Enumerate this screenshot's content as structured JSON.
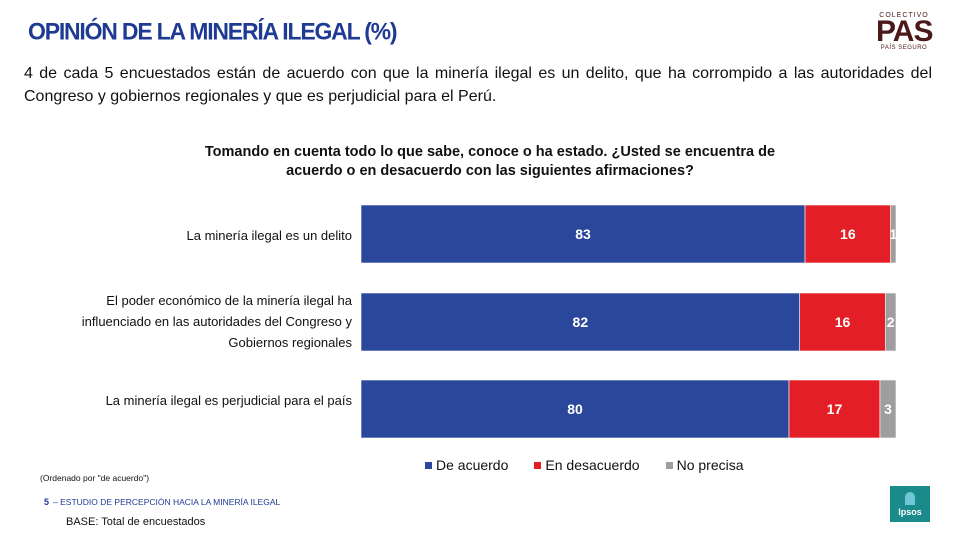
{
  "header": {
    "title": "OPINIÓN DE LA MINERÍA ILEGAL (%)",
    "logo_top": "COLECTIVO",
    "logo_main": "PAS",
    "logo_bottom": "PAÍS SEGURO"
  },
  "intro": "4 de cada 5 encuestados están de acuerdo con que la minería ilegal es un delito, que ha corrompido a las autoridades del Congreso y gobiernos regionales y que es perjudicial para el Perú.",
  "chart_data": {
    "type": "bar",
    "orientation": "horizontal-stacked-100",
    "title": "Tomando en cuenta todo lo que sabe, conoce o ha estado. ¿Usted se encuentra de acuerdo o en desacuerdo con las siguientes afirmaciones?",
    "categories": [
      "La minería ilegal es un delito",
      "El poder económico de la minería ilegal ha influenciado en las autoridades del Congreso y Gobiernos regionales",
      "La minería ilegal es perjudicial para el país"
    ],
    "series": [
      {
        "name": "De acuerdo",
        "color": "#2b479c",
        "values": [
          83,
          82,
          80
        ]
      },
      {
        "name": "En desacuerdo",
        "color": "#e41e26",
        "values": [
          16,
          16,
          17
        ]
      },
      {
        "name": "No precisa",
        "color": "#9e9e9e",
        "values": [
          1,
          2,
          3
        ]
      }
    ],
    "xlim": [
      0,
      100
    ],
    "legend_position": "bottom"
  },
  "footer": {
    "note": "(Ordenado por \"de acuerdo\")",
    "page_number": "5",
    "study": "ESTUDIO DE PERCEPCIÓN HACIA LA MINERÍA ILEGAL",
    "base": "BASE: Total de encuestados",
    "brand": "Ipsos"
  }
}
